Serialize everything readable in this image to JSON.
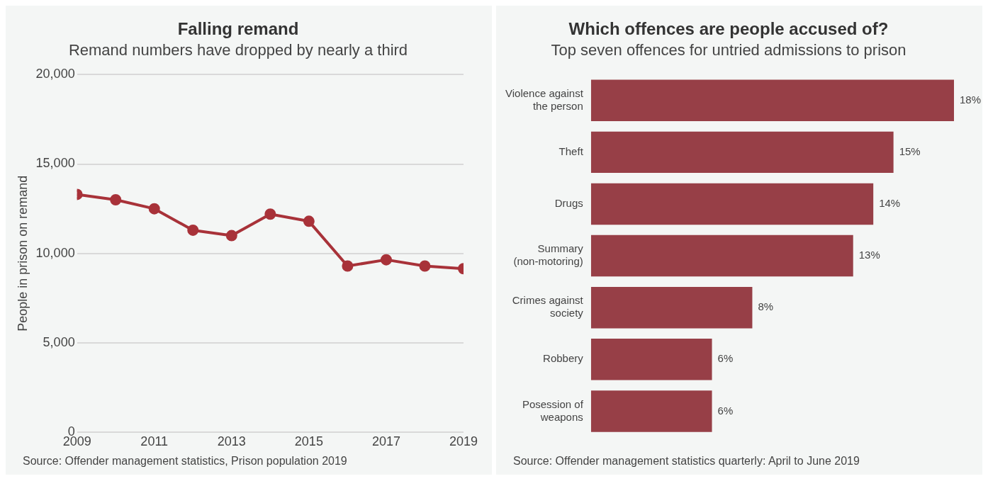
{
  "chart_data": [
    {
      "type": "line",
      "title": "Falling remand",
      "subtitle": "Remand numbers have dropped by nearly a third",
      "ylabel": "People in prison on remand",
      "x": [
        2009,
        2010,
        2011,
        2012,
        2013,
        2014,
        2015,
        2016,
        2017,
        2018,
        2019
      ],
      "series": [
        {
          "color": "#a83239",
          "values": [
            13300,
            13000,
            12500,
            11300,
            11000,
            12200,
            11800,
            9300,
            9650,
            9300,
            9150
          ]
        }
      ],
      "xlim": [
        2009,
        2019
      ],
      "xticks": [
        2009,
        2011,
        2013,
        2015,
        2017,
        2019
      ],
      "ylim": [
        0,
        20000
      ],
      "yticks": [
        {
          "value": 0,
          "label": "0"
        },
        {
          "value": 5000,
          "label": "5,000"
        },
        {
          "value": 10000,
          "label": "10,000"
        },
        {
          "value": 15000,
          "label": "15,000"
        },
        {
          "value": 20000,
          "label": "20,000"
        }
      ],
      "grid": "y",
      "marker": "circle",
      "line_style": "solid",
      "legend": false,
      "annotations": [
        "Source: Offender management statistics, Prison population 2019"
      ]
    },
    {
      "type": "bar",
      "orientation": "horizontal",
      "title": "Which offences are people accused of?",
      "subtitle": "Top seven offences for untried admissions to prison",
      "categories": [
        "Violence against the person",
        "Theft",
        "Drugs",
        "Summary (non-motoring)",
        "Crimes against society",
        "Robbery",
        "Posession of weapons"
      ],
      "values": [
        18,
        15,
        14,
        13,
        8,
        6,
        6
      ],
      "color": "#973f47",
      "value_labels": [
        "18%",
        "15%",
        "14%",
        "13%",
        "8%",
        "6%",
        "6%"
      ],
      "grid": false,
      "legend": false,
      "tick_labels": "y",
      "annotations": [
        "Source: Offender management statistics quarterly: April to June 2019"
      ]
    }
  ]
}
